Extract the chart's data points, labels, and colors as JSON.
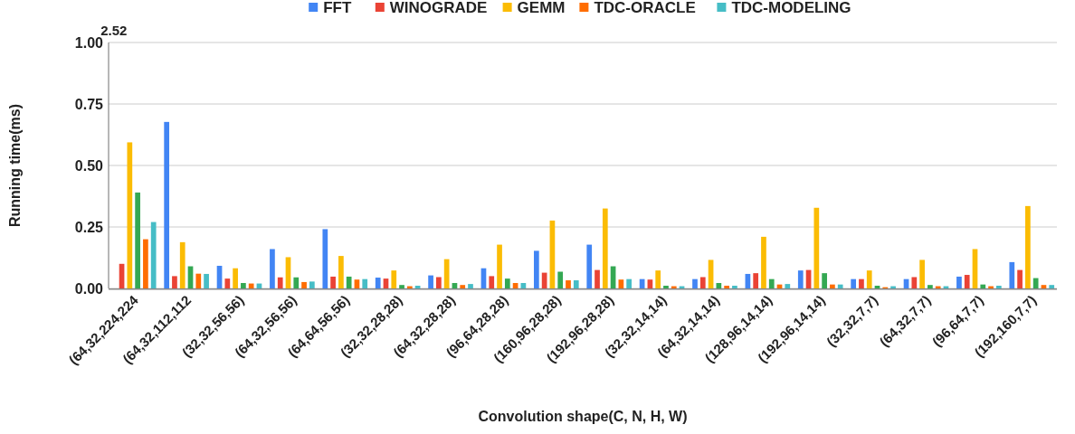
{
  "chart_data": {
    "type": "bar",
    "xlabel": "Convolution shape(C, N, H, W)",
    "ylabel": "Running time(ms)",
    "categories": [
      "(64,32,224,224",
      "(64,32,112,112",
      "(32,32,56,56)",
      "(64,32,56,56)",
      "(64,64,56,56)",
      "(32,32,28,28)",
      "(64,32,28,28)",
      "(96,64,28,28)",
      "(160,96,28,28)",
      "(192,96,28,28)",
      "(32,32,14,14)",
      "(64,32,14,14)",
      "(128,96,14,14)",
      "(192,96,14,14)",
      "(32,32,7,7)",
      "(64,32,7,7)",
      "(96,64,7,7)",
      "(192,160,7,7)"
    ],
    "series": [
      {
        "name": "FFT",
        "color": "#4285f4",
        "values": [
          null,
          0.677,
          0.092,
          0.16,
          0.241,
          0.044,
          0.053,
          0.082,
          0.153,
          0.178,
          0.038,
          0.038,
          0.059,
          0.073,
          0.038,
          0.038,
          0.048,
          0.107
        ]
      },
      {
        "name": "WINOGRADE",
        "color": "#ea4335",
        "values": [
          0.1,
          0.05,
          0.04,
          0.045,
          0.048,
          0.04,
          0.046,
          0.05,
          0.064,
          0.075,
          0.036,
          0.046,
          0.062,
          0.075,
          0.038,
          0.046,
          0.055,
          0.075
        ]
      },
      {
        "name": "GEMM",
        "color": "#fbbc04",
        "values": [
          0.594,
          0.188,
          0.082,
          0.127,
          0.132,
          0.073,
          0.119,
          0.178,
          0.276,
          0.325,
          0.073,
          0.116,
          0.21,
          0.328,
          0.073,
          0.116,
          0.16,
          0.335
        ]
      },
      {
        "color": "#34a853",
        "values": [
          0.39,
          0.09,
          0.022,
          0.045,
          0.048,
          0.014,
          0.022,
          0.04,
          0.068,
          0.09,
          0.011,
          0.022,
          0.038,
          0.062,
          0.011,
          0.014,
          0.016,
          0.042
        ]
      },
      {
        "name": "TDC-ORACLE",
        "color": "#ff6d01",
        "values": [
          0.2,
          0.06,
          0.02,
          0.026,
          0.036,
          0.009,
          0.014,
          0.022,
          0.033,
          0.036,
          0.009,
          0.011,
          0.016,
          0.016,
          0.005,
          0.009,
          0.009,
          0.014
        ]
      },
      {
        "name": "TDC-MODELING",
        "color": "#46bdc6",
        "values": [
          0.27,
          0.059,
          0.02,
          0.028,
          0.038,
          0.011,
          0.018,
          0.022,
          0.033,
          0.038,
          0.009,
          0.011,
          0.018,
          0.016,
          0.009,
          0.009,
          0.011,
          0.014
        ]
      }
    ],
    "ylim": [
      0,
      1
    ],
    "yticks": [
      {
        "value": 0,
        "label": "0.00"
      },
      {
        "value": 0.25,
        "label": "0.25"
      },
      {
        "value": 0.5,
        "label": "0.50"
      },
      {
        "value": 0.75,
        "label": "0.75"
      },
      {
        "value": 1,
        "label": "1.00"
      }
    ],
    "annotations": [
      "2.52"
    ],
    "grid": "y",
    "legend": "top"
  }
}
